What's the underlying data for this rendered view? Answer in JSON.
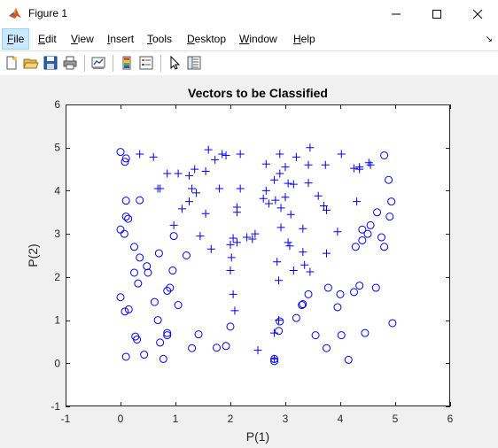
{
  "window": {
    "title": "Figure 1",
    "icon": "matlab-icon",
    "controls": [
      "minimize-icon",
      "maximize-icon",
      "close-icon"
    ]
  },
  "menu": {
    "items": [
      "File",
      "Edit",
      "View",
      "Insert",
      "Tools",
      "Desktop",
      "Window",
      "Help"
    ],
    "active": "File"
  },
  "toolbar": {
    "buttons": [
      "new-figure-icon",
      "open-file-icon",
      "save-icon",
      "print-icon",
      "link-plot-icon",
      "insert-colorbar-icon",
      "insert-legend-icon",
      "edit-plot-icon",
      "property-inspector-icon"
    ]
  },
  "colors": {
    "marker": "#0000ff",
    "axes_bg": "#ffffff",
    "figure_bg": "#f0f0f0"
  },
  "chart_data": {
    "type": "scatter",
    "title": "Vectors to be Classified",
    "xlabel": "P(1)",
    "ylabel": "P(2)",
    "xlim": [
      -1,
      6
    ],
    "ylim": [
      -1,
      6
    ],
    "xticks": [
      "-1",
      "0",
      "1",
      "2",
      "3",
      "4",
      "5",
      "6"
    ],
    "yticks": [
      "-1",
      "0",
      "1",
      "2",
      "3",
      "4",
      "5",
      "6"
    ],
    "grid": false,
    "series": [
      {
        "marker": "o",
        "points": [
          [
            0.0,
            4.9
          ],
          [
            0.08,
            4.67
          ],
          [
            0.1,
            4.75
          ],
          [
            0.1,
            3.77
          ],
          [
            0.1,
            3.4
          ],
          [
            0.14,
            3.35
          ],
          [
            0.0,
            3.1
          ],
          [
            0.07,
            3.0
          ],
          [
            0.25,
            2.7
          ],
          [
            0.35,
            2.45
          ],
          [
            0.25,
            2.1
          ],
          [
            0.32,
            1.85
          ],
          [
            0.48,
            2.25
          ],
          [
            0.5,
            2.1
          ],
          [
            0.35,
            3.78
          ],
          [
            0.62,
            1.42
          ],
          [
            0.68,
            1.0
          ],
          [
            0.85,
            1.68
          ],
          [
            0.9,
            1.75
          ],
          [
            0.95,
            2.15
          ],
          [
            0.97,
            2.95
          ],
          [
            1.05,
            1.35
          ],
          [
            0.72,
            0.48
          ],
          [
            0.85,
            0.7
          ],
          [
            0.85,
            0.65
          ],
          [
            0.78,
            0.1
          ],
          [
            0.3,
            0.55
          ],
          [
            0.27,
            0.62
          ],
          [
            0.43,
            0.2
          ],
          [
            0.1,
            0.15
          ],
          [
            0.0,
            1.53
          ],
          [
            0.08,
            1.2
          ],
          [
            0.15,
            1.25
          ],
          [
            0.7,
            2.55
          ],
          [
            1.2,
            2.5
          ],
          [
            1.3,
            0.35
          ],
          [
            1.42,
            0.67
          ],
          [
            1.75,
            0.36
          ],
          [
            1.92,
            0.4
          ],
          [
            2.0,
            0.85
          ],
          [
            2.8,
            0.1
          ],
          [
            2.8,
            0.05
          ],
          [
            2.88,
            0.75
          ],
          [
            2.9,
            0.97
          ],
          [
            3.2,
            1.05
          ],
          [
            3.3,
            1.35
          ],
          [
            3.32,
            1.37
          ],
          [
            3.42,
            1.6
          ],
          [
            3.55,
            0.65
          ],
          [
            3.75,
            0.35
          ],
          [
            3.78,
            1.75
          ],
          [
            3.95,
            1.3
          ],
          [
            4.0,
            1.6
          ],
          [
            4.02,
            0.65
          ],
          [
            4.15,
            0.08
          ],
          [
            4.25,
            1.65
          ],
          [
            4.35,
            1.8
          ],
          [
            4.45,
            0.7
          ],
          [
            4.55,
            3.2
          ],
          [
            4.5,
            3.0
          ],
          [
            4.4,
            2.85
          ],
          [
            4.28,
            2.7
          ],
          [
            4.65,
            1.75
          ],
          [
            4.67,
            3.5
          ],
          [
            4.75,
            2.92
          ],
          [
            4.8,
            2.7
          ],
          [
            4.9,
            3.4
          ],
          [
            4.93,
            3.75
          ],
          [
            4.88,
            4.25
          ],
          [
            4.8,
            4.82
          ],
          [
            4.95,
            0.93
          ],
          [
            4.4,
            3.1
          ]
        ]
      },
      {
        "marker": "+",
        "points": [
          [
            0.35,
            4.85
          ],
          [
            0.6,
            4.78
          ],
          [
            0.68,
            4.05
          ],
          [
            0.72,
            4.05
          ],
          [
            0.85,
            4.4
          ],
          [
            1.05,
            4.4
          ],
          [
            0.97,
            3.2
          ],
          [
            1.12,
            3.58
          ],
          [
            1.25,
            4.35
          ],
          [
            1.25,
            3.75
          ],
          [
            1.3,
            4.05
          ],
          [
            1.35,
            4.5
          ],
          [
            1.38,
            3.95
          ],
          [
            1.45,
            2.95
          ],
          [
            1.55,
            4.45
          ],
          [
            1.6,
            4.95
          ],
          [
            1.72,
            4.72
          ],
          [
            1.55,
            3.47
          ],
          [
            1.65,
            2.65
          ],
          [
            1.8,
            4.05
          ],
          [
            1.85,
            4.85
          ],
          [
            1.92,
            4.82
          ],
          [
            2.0,
            2.75
          ],
          [
            2.02,
            2.45
          ],
          [
            2.05,
            1.6
          ],
          [
            2.08,
            1.22
          ],
          [
            2.0,
            2.15
          ],
          [
            2.12,
            3.62
          ],
          [
            2.12,
            3.5
          ],
          [
            2.12,
            2.8
          ],
          [
            2.18,
            4.85
          ],
          [
            2.18,
            4.05
          ],
          [
            2.3,
            2.92
          ],
          [
            2.4,
            2.88
          ],
          [
            2.45,
            3.0
          ],
          [
            2.5,
            0.3
          ],
          [
            2.65,
            4.62
          ],
          [
            2.6,
            3.82
          ],
          [
            2.65,
            4.0
          ],
          [
            2.7,
            3.7
          ],
          [
            2.8,
            4.25
          ],
          [
            2.82,
            3.78
          ],
          [
            2.85,
            2.35
          ],
          [
            2.88,
            1.92
          ],
          [
            2.9,
            4.85
          ],
          [
            2.9,
            4.4
          ],
          [
            2.92,
            3.6
          ],
          [
            2.92,
            3.15
          ],
          [
            3.0,
            3.85
          ],
          [
            3.0,
            4.55
          ],
          [
            3.05,
            4.17
          ],
          [
            3.05,
            2.8
          ],
          [
            3.08,
            2.72
          ],
          [
            3.15,
            4.15
          ],
          [
            3.15,
            2.15
          ],
          [
            3.2,
            4.78
          ],
          [
            3.1,
            3.45
          ],
          [
            3.32,
            3.12
          ],
          [
            3.32,
            2.58
          ],
          [
            3.35,
            2.28
          ],
          [
            3.42,
            4.18
          ],
          [
            3.42,
            4.6
          ],
          [
            3.45,
            5.0
          ],
          [
            3.45,
            2.12
          ],
          [
            3.6,
            3.88
          ],
          [
            3.7,
            3.65
          ],
          [
            3.73,
            4.6
          ],
          [
            3.75,
            3.55
          ],
          [
            3.75,
            2.55
          ],
          [
            3.95,
            3.05
          ],
          [
            4.02,
            4.85
          ],
          [
            4.25,
            4.52
          ],
          [
            4.35,
            4.55
          ],
          [
            4.35,
            4.5
          ],
          [
            4.3,
            3.75
          ],
          [
            4.52,
            4.65
          ],
          [
            4.55,
            4.6
          ],
          [
            2.8,
            0.7
          ],
          [
            2.88,
            1.0
          ],
          [
            2.8,
            0.1
          ],
          [
            2.05,
            2.9
          ]
        ]
      }
    ]
  }
}
